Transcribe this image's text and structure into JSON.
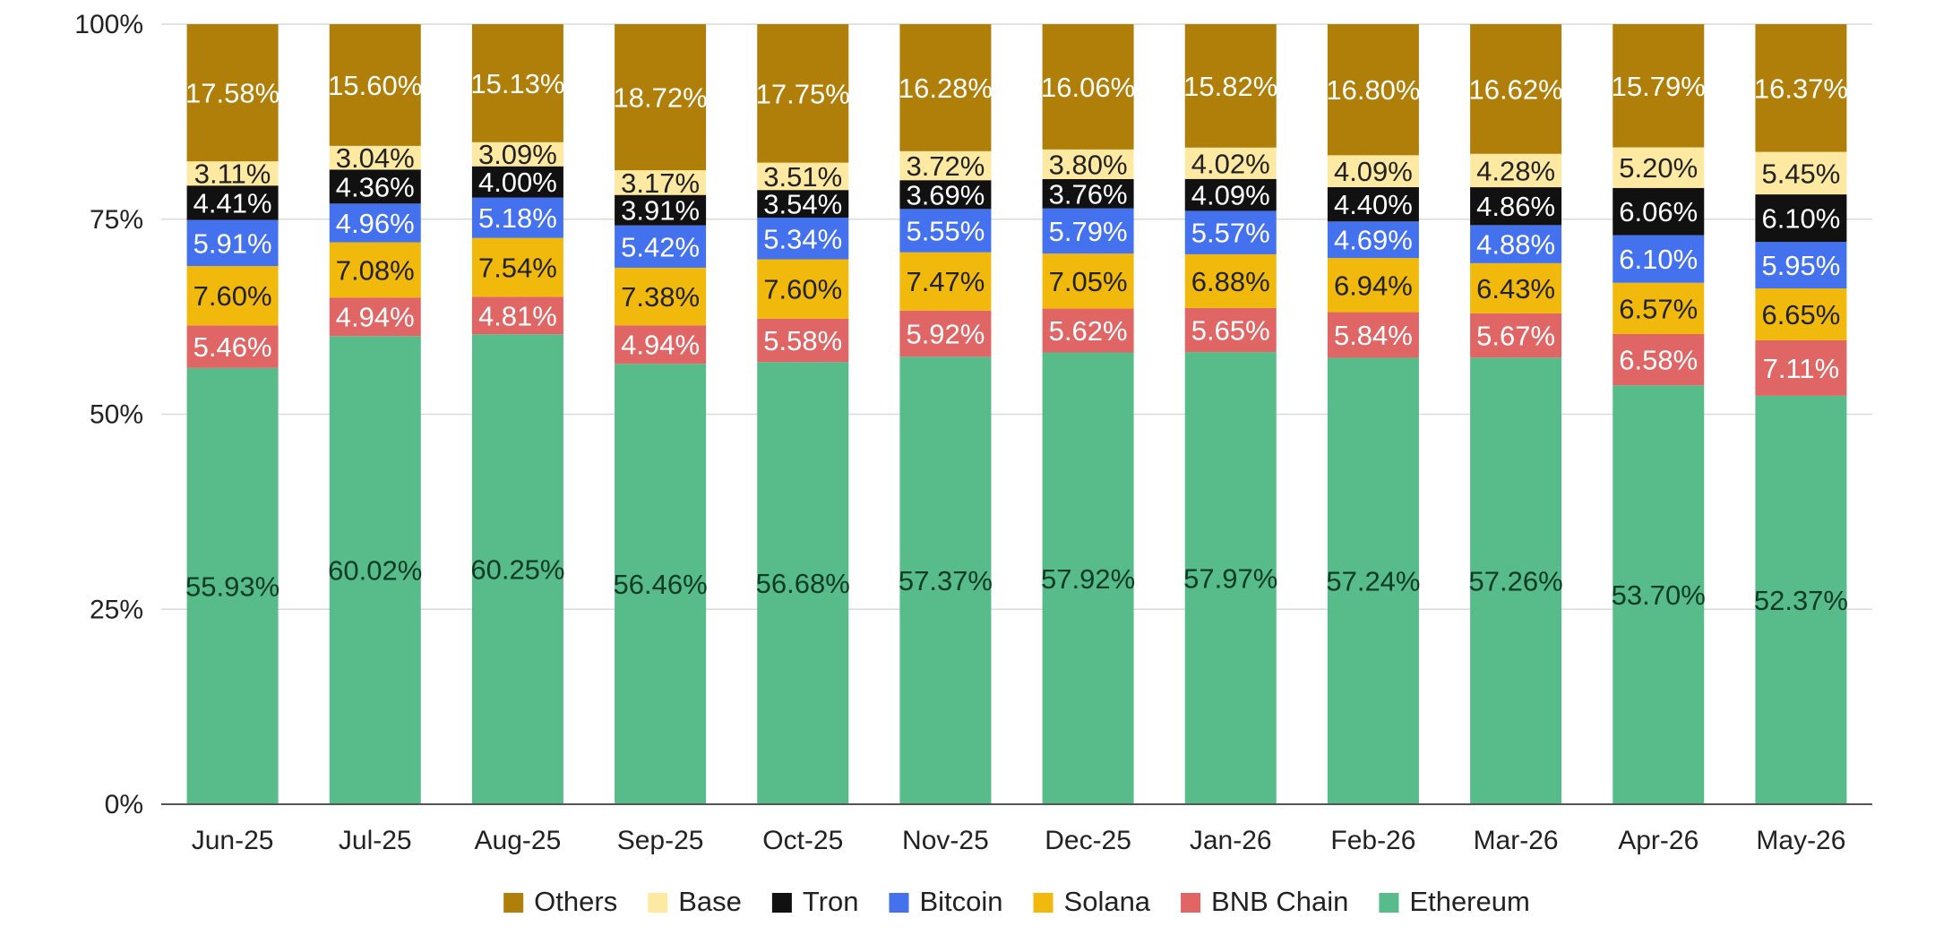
{
  "chart_data": {
    "type": "bar",
    "stacked": "percent",
    "grid": true,
    "legend_position": "bottom",
    "ylim": [
      0,
      100
    ],
    "y_ticks": [
      "0%",
      "25%",
      "50%",
      "75%",
      "100%"
    ],
    "categories": [
      "Jun-25",
      "Jul-25",
      "Aug-25",
      "Sep-25",
      "Oct-25",
      "Nov-25",
      "Dec-25",
      "Jan-26",
      "Feb-26",
      "Mar-26",
      "Apr-26",
      "May-26"
    ],
    "series": [
      {
        "name": "Ethereum",
        "color": "#57bb8a",
        "label_color": "#0d3b26",
        "values": [
          55.93,
          60.02,
          60.25,
          56.46,
          56.68,
          57.37,
          57.92,
          57.97,
          57.24,
          57.26,
          53.7,
          52.37
        ]
      },
      {
        "name": "BNB Chain",
        "color": "#e06666",
        "label_color": "#ffffff",
        "values": [
          5.46,
          4.94,
          4.81,
          4.94,
          5.58,
          5.92,
          5.62,
          5.65,
          5.84,
          5.67,
          6.58,
          7.11
        ]
      },
      {
        "name": "Solana",
        "color": "#f1b90c",
        "label_color": "#222222",
        "values": [
          7.6,
          7.08,
          7.54,
          7.38,
          7.6,
          7.47,
          7.05,
          6.88,
          6.94,
          6.43,
          6.57,
          6.65
        ]
      },
      {
        "name": "Bitcoin",
        "color": "#4472ef",
        "label_color": "#ffffff",
        "values": [
          5.91,
          4.96,
          5.18,
          5.42,
          5.34,
          5.55,
          5.79,
          5.57,
          4.69,
          4.88,
          6.1,
          5.95
        ]
      },
      {
        "name": "Tron",
        "color": "#111111",
        "label_color": "#ffffff",
        "values": [
          4.41,
          4.36,
          4.0,
          3.91,
          3.54,
          3.69,
          3.76,
          4.09,
          4.4,
          4.86,
          6.06,
          6.1
        ]
      },
      {
        "name": "Base",
        "color": "#fde9a1",
        "label_color": "#222222",
        "values": [
          3.11,
          3.04,
          3.09,
          3.17,
          3.51,
          3.72,
          3.8,
          4.02,
          4.09,
          4.28,
          5.2,
          5.45
        ]
      },
      {
        "name": "Others",
        "color": "#b07f09",
        "label_color": "#ffffff",
        "values": [
          17.58,
          15.6,
          15.13,
          18.72,
          17.75,
          16.28,
          16.06,
          15.82,
          16.8,
          16.62,
          15.79,
          16.37
        ]
      }
    ],
    "legend_order": [
      "Others",
      "Base",
      "Tron",
      "Bitcoin",
      "Solana",
      "BNB Chain",
      "Ethereum"
    ]
  }
}
